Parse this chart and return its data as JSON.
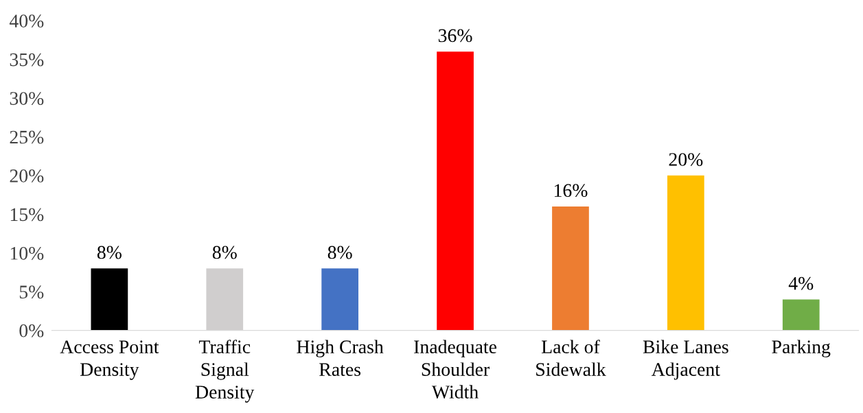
{
  "chart_data": {
    "type": "bar",
    "categories": [
      "Access Point\nDensity",
      "Traffic\nSignal\nDensity",
      "High Crash\nRates",
      "Inadequate\nShoulder\nWidth",
      "Lack of\nSidewalk",
      "Bike Lanes\nAdjacent",
      "Parking"
    ],
    "values": [
      8,
      8,
      8,
      36,
      16,
      20,
      4
    ],
    "colors": [
      "#000000",
      "#d0cece",
      "#4472c4",
      "#ff0000",
      "#ed7d31",
      "#ffc000",
      "#70ad47"
    ],
    "value_labels": [
      "8%",
      "8%",
      "8%",
      "36%",
      "16%",
      "20%",
      "4%"
    ],
    "ylim": [
      0,
      40
    ],
    "yticks": [
      {
        "value": 0,
        "label": "0%"
      },
      {
        "value": 5,
        "label": "5%"
      },
      {
        "value": 10,
        "label": "10%"
      },
      {
        "value": 15,
        "label": "15%"
      },
      {
        "value": 20,
        "label": "20%"
      },
      {
        "value": 25,
        "label": "25%"
      },
      {
        "value": 30,
        "label": "30%"
      },
      {
        "value": 35,
        "label": "35%"
      },
      {
        "value": 40,
        "label": "40%"
      }
    ],
    "grid": false
  }
}
